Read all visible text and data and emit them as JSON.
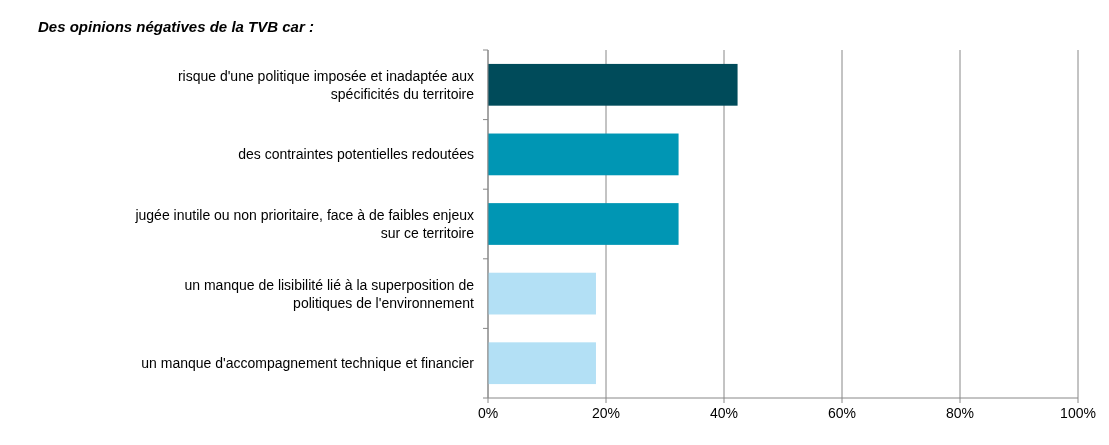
{
  "chart_data": {
    "type": "bar",
    "orientation": "horizontal",
    "title": "Des opinions négatives de la TVB car :",
    "categories": [
      "risque d'une politique imposée et inadaptée aux spécificités du territoire",
      "des contraintes potentielles redoutées",
      "jugée inutile ou non prioritaire, face à de faibles enjeux sur ce territoire",
      "un manque de lisibilité lié à la superposition de politiques de l'environnement",
      "un manque d'accompagnement technique et financier"
    ],
    "values": [
      42.3,
      32.3,
      32.3,
      18.3,
      18.3
    ],
    "colors": [
      "#004b5a",
      "#0096b4",
      "#0096b4",
      "#b3e0f5",
      "#b3e0f5"
    ],
    "xlim": [
      0,
      100
    ],
    "xticks": [
      {
        "value": 0,
        "label": "0%"
      },
      {
        "value": 20,
        "label": "20%"
      },
      {
        "value": 40,
        "label": "40%"
      },
      {
        "value": 60,
        "label": "60%"
      },
      {
        "value": 80,
        "label": "80%"
      },
      {
        "value": 100,
        "label": "100%"
      }
    ],
    "grid": "x"
  }
}
